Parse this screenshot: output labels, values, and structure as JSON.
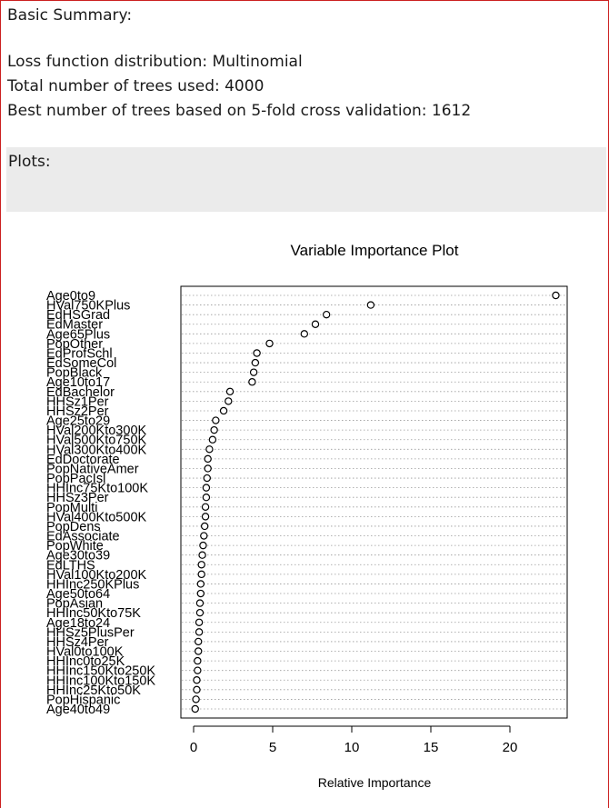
{
  "summary": {
    "heading": "Basic Summary:",
    "loss_line": "Loss function distribution: Multinomial",
    "trees_line": "Total number of trees used: 4000",
    "best_line": "Best number of trees based on 5-fold cross validation: 1612"
  },
  "plots": {
    "heading": "Plots:"
  },
  "chart_data": {
    "type": "scatter",
    "title": "Variable Importance Plot",
    "xlabel": "Relative Importance",
    "ylabel": "",
    "xlim": [
      0,
      23.5
    ],
    "xticks": [
      0,
      5,
      10,
      15,
      20
    ],
    "grid": "horizontal dotted",
    "legend": "none",
    "marker": "open-circle",
    "categories": [
      "Age0to9",
      "HVal750KPlus",
      "EdHSGrad",
      "EdMaster",
      "Age65Plus",
      "PopOther",
      "EdProfSchl",
      "EdSomeCol",
      "PopBlack",
      "Age10to17",
      "EdBachelor",
      "HHSz1Per",
      "HHSz2Per",
      "Age25to29",
      "HVal200Kto300K",
      "HVal500Kto750K",
      "HVal300Kto400K",
      "EdDoctorate",
      "PopNativeAmer",
      "PopPacIsl",
      "HHInc75Kto100K",
      "HHSz3Per",
      "PopMulti",
      "HVal400Kto500K",
      "PopDens",
      "EdAssociate",
      "PopWhite",
      "Age30to39",
      "EdLTHS",
      "HVal100Kto200K",
      "HHInc250KPlus",
      "Age50to64",
      "PopAsian",
      "HHInc50Kto75K",
      "Age18to24",
      "HHSz5PlusPer",
      "HHSz4Per",
      "HVal0to100K",
      "HHInc0to25K",
      "HHInc150Kto250K",
      "HHInc100Kto150K",
      "HHInc25Kto50K",
      "PopHispanic",
      "Age40to49"
    ],
    "values": [
      22.9,
      11.2,
      8.4,
      7.7,
      7.0,
      4.8,
      4.0,
      3.9,
      3.8,
      3.7,
      2.3,
      2.2,
      1.9,
      1.4,
      1.3,
      1.2,
      1.0,
      0.9,
      0.9,
      0.85,
      0.8,
      0.8,
      0.75,
      0.75,
      0.7,
      0.65,
      0.6,
      0.55,
      0.5,
      0.5,
      0.45,
      0.45,
      0.4,
      0.4,
      0.35,
      0.35,
      0.3,
      0.3,
      0.25,
      0.25,
      0.2,
      0.2,
      0.15,
      0.1
    ]
  }
}
